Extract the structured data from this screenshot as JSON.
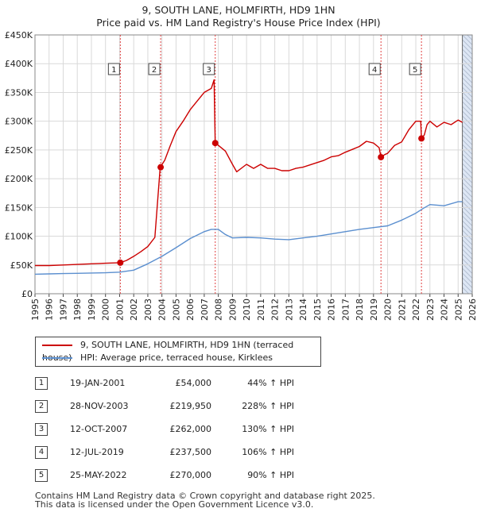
{
  "title_line1": "9, SOUTH LANE, HOLMFIRTH, HD9 1HN",
  "title_line2": "Price paid vs. HM Land Registry's House Price Index (HPI)",
  "legend": {
    "property_label": "9, SOUTH LANE, HOLMFIRTH, HD9 1HN (terraced house)",
    "hpi_label": "HPI: Average price, terraced house, Kirklees"
  },
  "colors": {
    "property": "#cc0000",
    "hpi": "#5b8fcf",
    "shade": "#dde6f4",
    "vline": "#e04040"
  },
  "transactions": [
    {
      "num": "1",
      "date": "19-JAN-2001",
      "price": "£54,000",
      "hpi": "44% ↑ HPI"
    },
    {
      "num": "2",
      "date": "28-NOV-2003",
      "price": "£219,950",
      "hpi": "228% ↑ HPI"
    },
    {
      "num": "3",
      "date": "12-OCT-2007",
      "price": "£262,000",
      "hpi": "130% ↑ HPI"
    },
    {
      "num": "4",
      "date": "12-JUL-2019",
      "price": "£237,500",
      "hpi": "106% ↑ HPI"
    },
    {
      "num": "5",
      "date": "25-MAY-2022",
      "price": "£270,000",
      "hpi": "90% ↑ HPI"
    }
  ],
  "footer_line1": "Contains HM Land Registry data © Crown copyright and database right 2025.",
  "footer_line2": "This data is licensed under the Open Government Licence v3.0.",
  "chart_data": {
    "type": "line",
    "title": "9, SOUTH LANE, HOLMFIRTH, HD9 1HN",
    "subtitle": "Price paid vs. HM Land Registry's House Price Index (HPI)",
    "xlim": [
      1995,
      2026
    ],
    "ylim": [
      0,
      450000
    ],
    "x_ticks": [
      1995,
      1996,
      1997,
      1998,
      1999,
      2000,
      2001,
      2002,
      2003,
      2004,
      2005,
      2006,
      2007,
      2008,
      2009,
      2010,
      2011,
      2012,
      2013,
      2014,
      2015,
      2016,
      2017,
      2018,
      2019,
      2020,
      2021,
      2022,
      2023,
      2024,
      2025,
      2026
    ],
    "y_ticks": [
      0,
      50000,
      100000,
      150000,
      200000,
      250000,
      300000,
      350000,
      400000,
      450000
    ],
    "y_tick_labels": [
      "£0",
      "£50K",
      "£100K",
      "£150K",
      "£200K",
      "£250K",
      "£300K",
      "£350K",
      "£400K",
      "£450K"
    ],
    "grid": true,
    "shaded_ranges": [
      [
        2025.3,
        2026
      ]
    ],
    "series": [
      {
        "name": "9, SOUTH LANE, HOLMFIRTH, HD9 1HN (terraced house)",
        "x": [
          1995,
          1996,
          1997,
          1998,
          1999,
          2000,
          2001.05,
          2001.5,
          2002,
          2002.5,
          2003,
          2003.5,
          2003.88,
          2004.2,
          2004.6,
          2005,
          2005.5,
          2006,
          2006.5,
          2007,
          2007.5,
          2007.7,
          2007.78,
          2008,
          2008.5,
          2009,
          2009.3,
          2010,
          2010.5,
          2011,
          2011.5,
          2012,
          2012.5,
          2013,
          2013.5,
          2014,
          2014.5,
          2015,
          2015.5,
          2016,
          2016.5,
          2017,
          2017.5,
          2018,
          2018.5,
          2019,
          2019.4,
          2019.53,
          2019.8,
          2020,
          2020.5,
          2021,
          2021.5,
          2022,
          2022.35,
          2022.4,
          2022.6,
          2022.8,
          2023,
          2023.5,
          2024,
          2024.5,
          2025,
          2025.3
        ],
        "y": [
          49000,
          49000,
          50000,
          51000,
          52000,
          53000,
          54000,
          58000,
          65000,
          73000,
          82000,
          98000,
          219950,
          232000,
          258000,
          282000,
          300000,
          320000,
          335000,
          350000,
          357000,
          372000,
          262000,
          258000,
          248000,
          225000,
          212000,
          225000,
          218000,
          225000,
          218000,
          218000,
          214000,
          214000,
          218000,
          220000,
          224000,
          228000,
          232000,
          238000,
          240000,
          246000,
          251000,
          256000,
          265000,
          262000,
          254000,
          237500,
          242000,
          244000,
          258000,
          264000,
          285000,
          300000,
          300000,
          270000,
          276000,
          294000,
          300000,
          290000,
          298000,
          294000,
          302000,
          298000
        ]
      },
      {
        "name": "HPI: Average price, terraced house, Kirklees",
        "x": [
          1995,
          1996,
          1997,
          1998,
          1999,
          2000,
          2001,
          2002,
          2003,
          2004,
          2005,
          2006,
          2007,
          2007.5,
          2008,
          2008.5,
          2009,
          2010,
          2011,
          2012,
          2013,
          2014,
          2015,
          2016,
          2017,
          2018,
          2019,
          2020,
          2021,
          2022,
          2022.5,
          2023,
          2024,
          2025,
          2025.3
        ],
        "y": [
          34000,
          34500,
          35000,
          35500,
          36000,
          36500,
          37500,
          41000,
          52000,
          65000,
          80000,
          96000,
          108000,
          112000,
          112000,
          103000,
          97000,
          98000,
          97000,
          95000,
          94000,
          97000,
          100000,
          104000,
          108000,
          112000,
          115000,
          118000,
          128000,
          140000,
          148000,
          155000,
          153000,
          160000,
          160000
        ]
      }
    ],
    "sales": [
      {
        "num": "1",
        "x": 2001.05,
        "y": 54000
      },
      {
        "num": "2",
        "x": 2003.91,
        "y": 219950
      },
      {
        "num": "3",
        "x": 2007.78,
        "y": 262000
      },
      {
        "num": "4",
        "x": 2019.53,
        "y": 237500
      },
      {
        "num": "5",
        "x": 2022.4,
        "y": 270000
      }
    ],
    "legend_position": "bottom"
  }
}
